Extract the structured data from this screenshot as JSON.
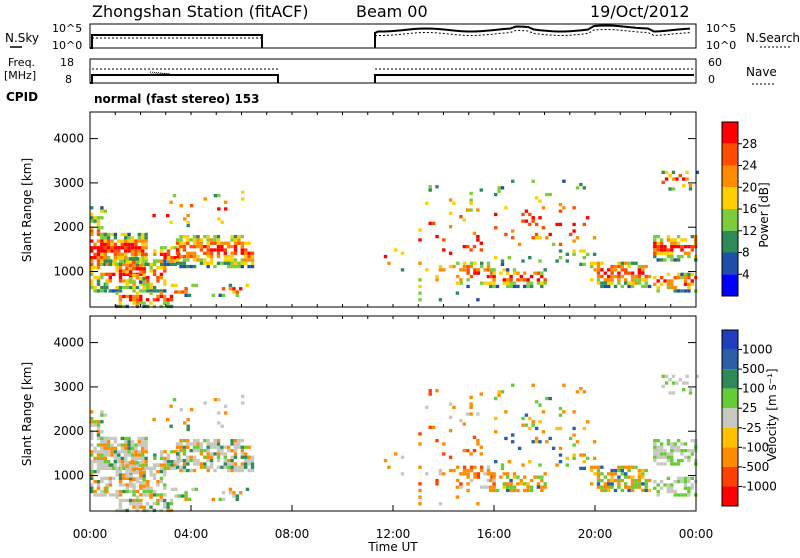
{
  "header": {
    "station": "Zhongshan Station (fitACF)",
    "beam": "Beam 00",
    "date": "19/Oct/2012"
  },
  "panels": {
    "nsky_label": "N.Sky",
    "nsky_ticks": [
      "10^5",
      "10^0"
    ],
    "nsearch_label": "N.Search",
    "nsearch_ticks": [
      "10^5",
      "10^0"
    ],
    "freq_label_1": "Freq.",
    "freq_label_2": "[MHz]",
    "freq_ticks": [
      "18",
      "8"
    ],
    "nave_label": "Nave",
    "nave_ticks": [
      "60",
      "0"
    ],
    "cpid_label": "CPID",
    "cpid_text": "normal (fast stereo) 153"
  },
  "x_axis": {
    "label": "Time UT",
    "tick_labels": [
      "00:00",
      "04:00",
      "08:00",
      "12:00",
      "16:00",
      "20:00",
      "00:00"
    ]
  },
  "colorbars": {
    "power": {
      "label": "Power [dB]",
      "ticks": [
        "28",
        "24",
        "20",
        "16",
        "12",
        "8",
        "4"
      ],
      "colors": [
        "#ff0000",
        "#ff4d00",
        "#ff8c00",
        "#ffd000",
        "#7ccd3c",
        "#2e8b57",
        "#1f4fa8",
        "#0000ff"
      ]
    },
    "velocity": {
      "label": "Velocity [m s⁻¹]",
      "ticks": [
        "1000",
        "500",
        "100",
        "25",
        "-25",
        "-100",
        "-500",
        "-1000"
      ],
      "colors": [
        "#1f3fbf",
        "#2a5fa8",
        "#2e8b57",
        "#66cc33",
        "#c8c8c0",
        "#ffc000",
        "#ff8c00",
        "#ff4000",
        "#ff0000"
      ]
    }
  },
  "chart_data": [
    {
      "type": "heatmap",
      "name": "power",
      "ylabel": "Slant Range [km]",
      "xlabel": "Time UT",
      "xlim": [
        0,
        24
      ],
      "ylim": [
        200,
        4600
      ],
      "yticks": [
        1000,
        2000,
        3000,
        4000
      ],
      "colorbar_label": "Power [dB]",
      "colorbar_ticks": [
        4,
        8,
        12,
        16,
        20,
        24,
        28
      ]
    },
    {
      "type": "heatmap",
      "name": "velocity",
      "ylabel": "Slant Range [km]",
      "xlabel": "Time UT",
      "xlim": [
        0,
        24
      ],
      "ylim": [
        200,
        4600
      ],
      "yticks": [
        1000,
        2000,
        3000,
        4000
      ],
      "colorbar_label": "Velocity [m s⁻¹]",
      "colorbar_ticks": [
        -1000,
        -500,
        -100,
        -25,
        25,
        100,
        500,
        1000
      ]
    }
  ]
}
